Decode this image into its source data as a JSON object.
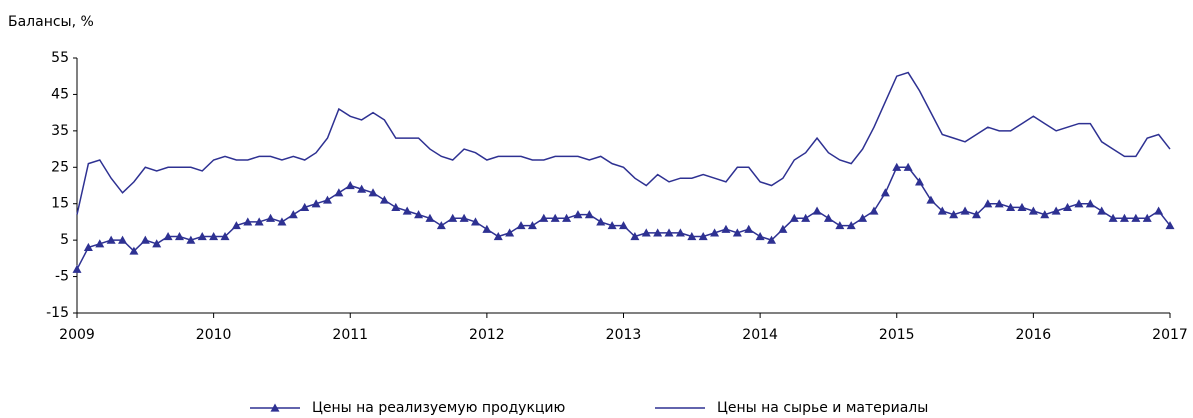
{
  "chart_data": {
    "type": "line",
    "ylabel": "Балансы, %",
    "categories": [
      "2009",
      null,
      null,
      null,
      null,
      null,
      null,
      null,
      null,
      null,
      null,
      null,
      "2010",
      null,
      null,
      null,
      null,
      null,
      null,
      null,
      null,
      null,
      null,
      null,
      "2011",
      null,
      null,
      null,
      null,
      null,
      null,
      null,
      null,
      null,
      null,
      null,
      "2012",
      null,
      null,
      null,
      null,
      null,
      null,
      null,
      null,
      null,
      null,
      null,
      "2013",
      null,
      null,
      null,
      null,
      null,
      null,
      null,
      null,
      null,
      null,
      null,
      "2014",
      null,
      null,
      null,
      null,
      null,
      null,
      null,
      null,
      null,
      null,
      null,
      "2015",
      null,
      null,
      null,
      null,
      null,
      null,
      null,
      null,
      null,
      null,
      null,
      "2016",
      null,
      null,
      null,
      null,
      null,
      null,
      null,
      null,
      null,
      null,
      null,
      "2017"
    ],
    "series": [
      {
        "name": "Цены на реализуемую продукцию",
        "color": "#2e3192",
        "marker": "triangle",
        "values": [
          -3,
          3,
          4,
          5,
          5,
          2,
          5,
          4,
          6,
          6,
          5,
          6,
          6,
          6,
          9,
          10,
          10,
          11,
          10,
          12,
          14,
          15,
          16,
          18,
          20,
          19,
          18,
          16,
          14,
          13,
          12,
          11,
          9,
          11,
          11,
          10,
          8,
          6,
          7,
          9,
          9,
          11,
          11,
          11,
          12,
          12,
          10,
          9,
          9,
          6,
          7,
          7,
          7,
          7,
          6,
          6,
          7,
          8,
          7,
          8,
          6,
          5,
          8,
          11,
          11,
          13,
          11,
          9,
          9,
          11,
          13,
          18,
          25,
          25,
          21,
          16,
          13,
          12,
          13,
          12,
          15,
          15,
          14,
          14,
          13,
          12,
          13,
          14,
          15,
          15,
          13,
          11,
          11,
          11,
          11,
          13,
          9
        ]
      },
      {
        "name": "Цены на сырье и материалы",
        "color": "#2e3192",
        "values": [
          12,
          26,
          27,
          22,
          18,
          21,
          25,
          24,
          25,
          25,
          25,
          24,
          27,
          28,
          27,
          27,
          28,
          28,
          27,
          28,
          27,
          29,
          33,
          41,
          39,
          38,
          40,
          38,
          33,
          33,
          33,
          30,
          28,
          27,
          30,
          29,
          27,
          28,
          28,
          28,
          27,
          27,
          28,
          28,
          28,
          27,
          28,
          26,
          25,
          22,
          20,
          23,
          21,
          22,
          22,
          23,
          22,
          21,
          25,
          25,
          21,
          20,
          22,
          27,
          29,
          33,
          29,
          27,
          26,
          30,
          36,
          43,
          50,
          51,
          46,
          40,
          34,
          33,
          32,
          34,
          36,
          35,
          35,
          37,
          39,
          37,
          35,
          36,
          37,
          37,
          32,
          30,
          28,
          28,
          33,
          34,
          30
        ]
      }
    ],
    "ylim": [
      -15,
      55
    ],
    "yticks": [
      -15,
      -5,
      5,
      15,
      25,
      35,
      45,
      55
    ],
    "grid": false,
    "legend": "bottom"
  }
}
